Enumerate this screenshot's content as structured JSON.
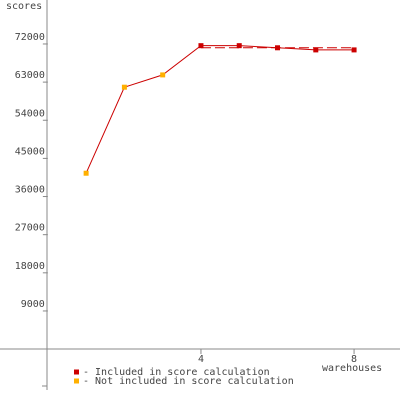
{
  "chart_data": {
    "type": "line",
    "y_label": "scores",
    "x_label": "warehouses",
    "x": [
      1,
      2,
      3,
      4,
      5,
      6,
      7,
      8
    ],
    "values": [
      41500,
      61800,
      64700,
      71600,
      71600,
      71100,
      70600,
      70600
    ],
    "line_color": "#cc0000",
    "point_colors": [
      "#ffb000",
      "#ffb000",
      "#ffb000",
      "#cc0000",
      "#cc0000",
      "#cc0000",
      "#cc0000",
      "#cc0000"
    ],
    "reference_line": {
      "value": 71100,
      "from": 4,
      "to": 8,
      "color": "#cc0000"
    },
    "legend": [
      {
        "label": "- Included in score calculation",
        "color": "#cc0000"
      },
      {
        "label": "- Not included in score calculation",
        "color": "#ffb000"
      }
    ],
    "xlim": [
      -1.25,
      9.2
    ],
    "ylim": [
      -9650,
      82375
    ],
    "xticks": [
      4,
      8
    ],
    "yticks": [
      9000,
      18000,
      27000,
      36000,
      45000,
      54000,
      63000,
      72000
    ]
  }
}
